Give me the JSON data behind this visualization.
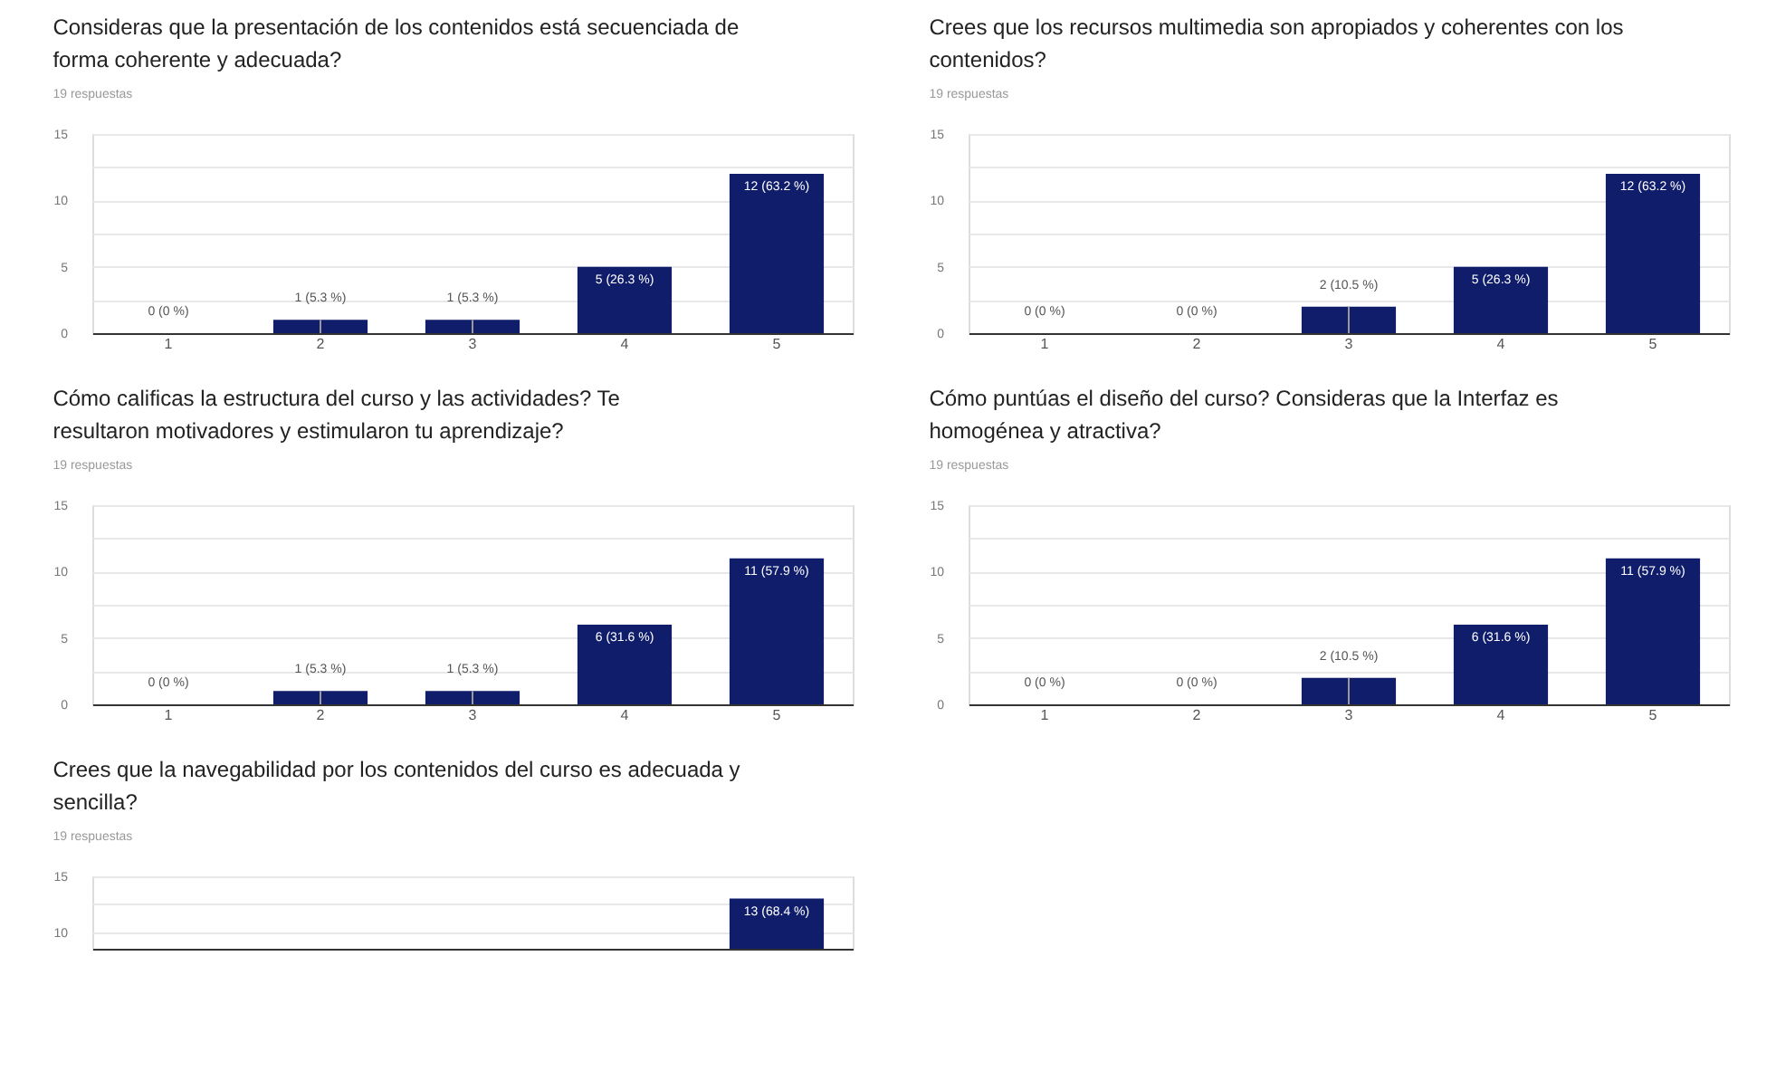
{
  "chart_data": [
    {
      "type": "bar",
      "title": "Consideras que la presentación de los contenidos está secuenciada de forma coherente y adecuada?",
      "subtitle": "19 respuestas",
      "categories": [
        "1",
        "2",
        "3",
        "4",
        "5"
      ],
      "values": [
        0,
        1,
        1,
        5,
        12
      ],
      "value_labels": [
        "0 (0 %)",
        "1 (5.3 %)",
        "1 (5.3 %)",
        "5 (26.3 %)",
        "12 (63.2 %)"
      ],
      "color": "#101d6b",
      "ylim": [
        0,
        15
      ],
      "yticks": [
        0,
        {
          "value": 2.5,
          "label": null
        },
        5,
        {
          "value": 7.5,
          "label": null
        },
        10,
        {
          "value": 12.5,
          "label": null
        },
        15
      ],
      "grid": "y",
      "legend": false
    },
    {
      "type": "bar",
      "title": "Crees que los recursos multimedia son apropiados y coherentes con los contenidos?",
      "subtitle": "19 respuestas",
      "categories": [
        "1",
        "2",
        "3",
        "4",
        "5"
      ],
      "values": [
        0,
        0,
        2,
        5,
        12
      ],
      "value_labels": [
        "0 (0 %)",
        "0 (0 %)",
        "2 (10.5 %)",
        "5 (26.3 %)",
        "12 (63.2 %)"
      ],
      "color": "#101d6b",
      "ylim": [
        0,
        15
      ],
      "yticks": [
        0,
        {
          "value": 2.5,
          "label": null
        },
        5,
        {
          "value": 7.5,
          "label": null
        },
        10,
        {
          "value": 12.5,
          "label": null
        },
        15
      ],
      "grid": "y",
      "legend": false
    },
    {
      "type": "bar",
      "title": "Cómo calificas la estructura del curso y las actividades? Te resultaron motivadores y estimularon tu aprendizaje?",
      "subtitle": "19 respuestas",
      "categories": [
        "1",
        "2",
        "3",
        "4",
        "5"
      ],
      "values": [
        0,
        1,
        1,
        6,
        11
      ],
      "value_labels": [
        "0 (0 %)",
        "1 (5.3 %)",
        "1 (5.3 %)",
        "6 (31.6 %)",
        "11 (57.9 %)"
      ],
      "color": "#101d6b",
      "ylim": [
        0,
        15
      ],
      "yticks": [
        0,
        {
          "value": 2.5,
          "label": null
        },
        5,
        {
          "value": 7.5,
          "label": null
        },
        10,
        {
          "value": 12.5,
          "label": null
        },
        15
      ],
      "grid": "y",
      "legend": false
    },
    {
      "type": "bar",
      "title": "Cómo puntúas el diseño del curso? Consideras que la Interfaz es homogénea y atractiva?",
      "subtitle": "19 respuestas",
      "categories": [
        "1",
        "2",
        "3",
        "4",
        "5"
      ],
      "values": [
        0,
        0,
        2,
        6,
        11
      ],
      "value_labels": [
        "0 (0 %)",
        "0 (0 %)",
        "2 (10.5 %)",
        "6 (31.6 %)",
        "11 (57.9 %)"
      ],
      "color": "#101d6b",
      "ylim": [
        0,
        15
      ],
      "yticks": [
        0,
        {
          "value": 2.5,
          "label": null
        },
        5,
        {
          "value": 7.5,
          "label": null
        },
        10,
        {
          "value": 12.5,
          "label": null
        },
        15
      ],
      "grid": "y",
      "legend": false
    },
    {
      "type": "bar",
      "title": "Crees que la navegabilidad por los contenidos del curso es adecuada y sencilla?",
      "subtitle": "19 respuestas",
      "categories": [
        null,
        null,
        null,
        null,
        null
      ],
      "values": [
        null,
        null,
        null,
        null,
        13
      ],
      "value_labels": [
        null,
        null,
        null,
        null,
        "13 (68.4 %)"
      ],
      "color": "#101d6b",
      "ylim": [
        8.5,
        15
      ],
      "yticks": [
        10,
        {
          "value": 12.5,
          "label": null
        },
        15
      ],
      "grid": "y",
      "legend": false,
      "tick_labels": "y"
    }
  ]
}
